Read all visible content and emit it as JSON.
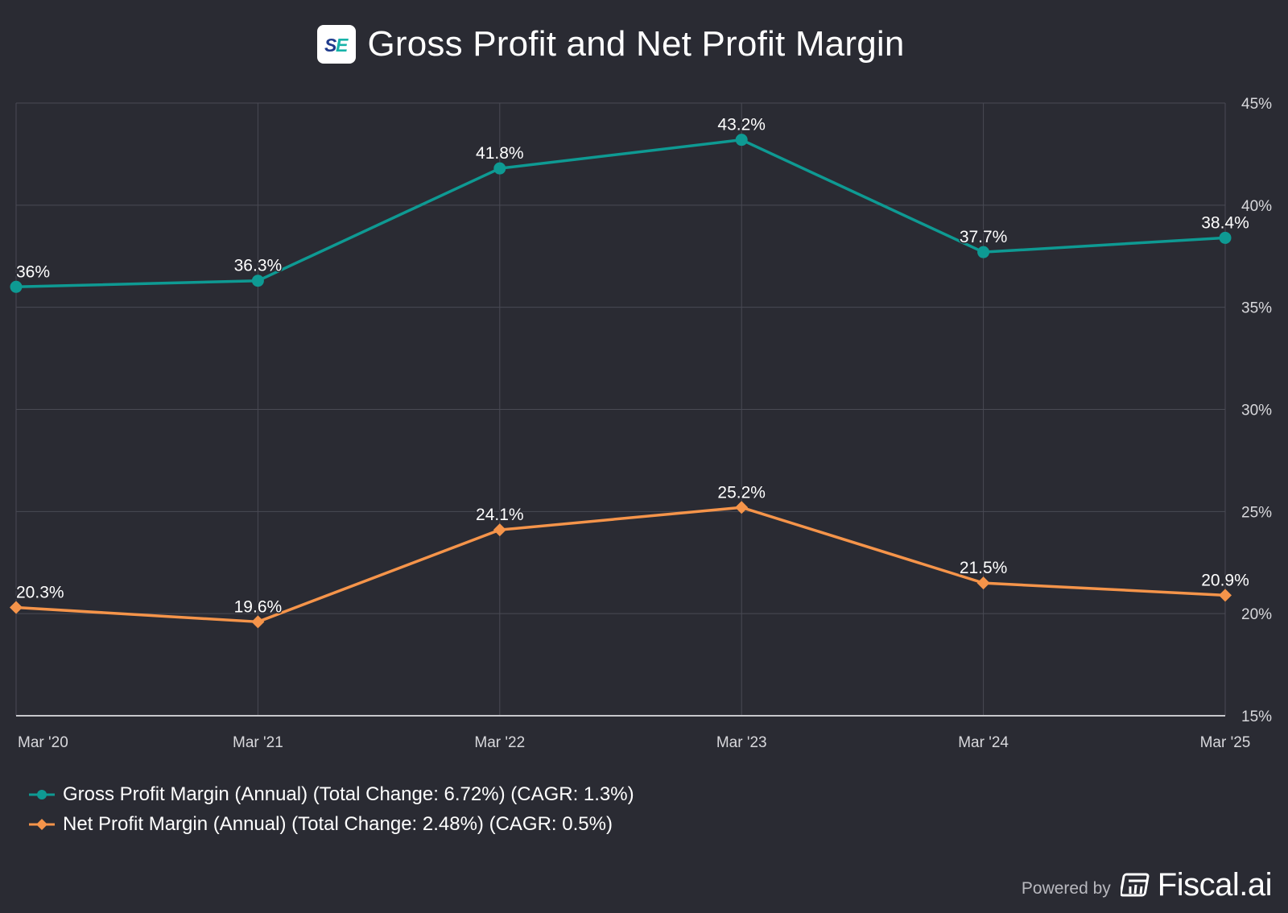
{
  "header": {
    "title": "Gross Profit and Net Profit Margin",
    "logo_icon": "se-logo-icon"
  },
  "chart_data": {
    "type": "line",
    "title": "Gross Profit and Net Profit Margin",
    "categories": [
      "Mar '20",
      "Mar '21",
      "Mar '22",
      "Mar '23",
      "Mar '24",
      "Mar '25"
    ],
    "series": [
      {
        "name": "Gross Profit Margin (Annual) (Total Change: 6.72%) (CAGR: 1.3%)",
        "values": [
          36.0,
          36.3,
          41.8,
          43.2,
          37.7,
          38.4
        ],
        "labels": [
          "36%",
          "36.3%",
          "41.8%",
          "43.2%",
          "37.7%",
          "38.4%"
        ],
        "color": "#0e9a93",
        "marker": "circle"
      },
      {
        "name": "Net Profit Margin (Annual) (Total Change: 2.48%) (CAGR: 0.5%)",
        "values": [
          20.3,
          19.6,
          24.1,
          25.2,
          21.5,
          20.9
        ],
        "labels": [
          "20.3%",
          "19.6%",
          "24.1%",
          "25.2%",
          "21.5%",
          "20.9%"
        ],
        "color": "#f5944a",
        "marker": "diamond"
      }
    ],
    "yaxis": {
      "side": "right",
      "ticks": [
        15,
        20,
        25,
        30,
        35,
        40,
        45
      ],
      "tick_labels": [
        "15%",
        "20%",
        "25%",
        "30%",
        "35%",
        "40%",
        "45%"
      ],
      "ylim": [
        15,
        45
      ]
    },
    "grid": true,
    "legend_position": "bottom-left"
  },
  "footer": {
    "powered_by": "Powered by",
    "brand": "Fiscal.ai",
    "brand_icon": "fiscal-ai-icon"
  },
  "colors": {
    "background": "#2a2b33",
    "grid": "#494a54",
    "axis": "#c8c8cc",
    "tick_text": "#d8d8dc"
  }
}
